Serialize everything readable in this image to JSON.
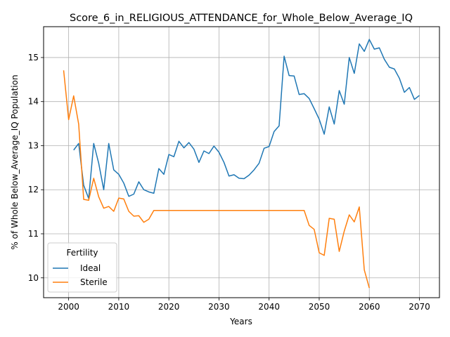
{
  "chart_data": {
    "type": "line",
    "title": "Score_6_in_RELIGIOUS_ATTENDANCE_for_Whole_Below_Average_IQ",
    "xlabel": "Years",
    "ylabel": "% of Whole Below_Average_IQ Population",
    "xlim": [
      1995,
      2074
    ],
    "ylim": [
      9.55,
      15.7
    ],
    "xticks": [
      2000,
      2010,
      2020,
      2030,
      2040,
      2050,
      2060,
      2070
    ],
    "yticks": [
      10,
      11,
      12,
      13,
      14,
      15
    ],
    "grid": true,
    "legend": {
      "title": "Fertility",
      "placement": "lower-left"
    },
    "series": [
      {
        "name": "Ideal",
        "color": "#1f77b4",
        "x": [
          2001,
          2002,
          2003,
          2004,
          2005,
          2006,
          2007,
          2008,
          2009,
          2010,
          2011,
          2012,
          2013,
          2014,
          2015,
          2016,
          2017,
          2018,
          2019,
          2020,
          2021,
          2022,
          2023,
          2024,
          2025,
          2026,
          2027,
          2028,
          2029,
          2030,
          2031,
          2032,
          2033,
          2034,
          2035,
          2036,
          2037,
          2038,
          2039,
          2040,
          2041,
          2042,
          2043,
          2044,
          2045,
          2046,
          2047,
          2048,
          2049,
          2050,
          2051,
          2052,
          2053,
          2054,
          2055,
          2056,
          2057,
          2058,
          2059,
          2060,
          2061,
          2062,
          2063,
          2064,
          2065,
          2066,
          2067,
          2068,
          2069,
          2070
        ],
        "values": [
          12.9,
          13.05,
          12.1,
          11.8,
          13.05,
          12.6,
          12.0,
          13.05,
          12.45,
          12.35,
          12.15,
          11.85,
          11.9,
          12.18,
          12.0,
          11.95,
          11.92,
          12.48,
          12.35,
          12.8,
          12.75,
          13.1,
          12.95,
          13.07,
          12.92,
          12.62,
          12.88,
          12.82,
          12.99,
          12.85,
          12.62,
          12.31,
          12.34,
          12.26,
          12.25,
          12.33,
          12.45,
          12.6,
          12.94,
          12.98,
          13.32,
          13.45,
          15.03,
          14.59,
          14.58,
          14.16,
          14.18,
          14.07,
          13.84,
          13.6,
          13.26,
          13.88,
          13.49,
          14.25,
          13.94,
          15.0,
          14.64,
          15.31,
          15.14,
          15.41,
          15.19,
          15.22,
          14.96,
          14.78,
          14.74,
          14.53,
          14.21,
          14.32,
          14.05,
          14.14
        ]
      },
      {
        "name": "Sterile",
        "color": "#ff7f0e",
        "x": [
          1999,
          2000,
          2001,
          2002,
          2003,
          2004,
          2005,
          2006,
          2007,
          2008,
          2009,
          2010,
          2011,
          2012,
          2013,
          2014,
          2015,
          2016,
          2017,
          2018,
          2019,
          2020,
          2021,
          2022,
          2023,
          2024,
          2025,
          2026,
          2027,
          2028,
          2029,
          2030,
          2031,
          2032,
          2033,
          2034,
          2035,
          2036,
          2037,
          2038,
          2039,
          2040,
          2041,
          2042,
          2043,
          2044,
          2045,
          2046,
          2047,
          2048,
          2049,
          2050,
          2051,
          2052,
          2053,
          2054,
          2055,
          2056,
          2057,
          2058,
          2059,
          2060
        ],
        "values": [
          14.71,
          13.59,
          14.13,
          13.49,
          11.78,
          11.76,
          12.26,
          11.84,
          11.58,
          11.62,
          11.51,
          11.81,
          11.79,
          11.51,
          11.4,
          11.41,
          11.26,
          11.33,
          11.53,
          11.53,
          11.53,
          11.53,
          11.53,
          11.53,
          11.53,
          11.53,
          11.53,
          11.53,
          11.53,
          11.53,
          11.53,
          11.53,
          11.53,
          11.53,
          11.53,
          11.53,
          11.53,
          11.53,
          11.53,
          11.53,
          11.53,
          11.53,
          11.53,
          11.53,
          11.53,
          11.53,
          11.53,
          11.53,
          11.53,
          11.19,
          11.1,
          10.57,
          10.51,
          11.35,
          11.33,
          10.6,
          11.06,
          11.43,
          11.27,
          11.61,
          10.18,
          9.77
        ]
      }
    ]
  }
}
